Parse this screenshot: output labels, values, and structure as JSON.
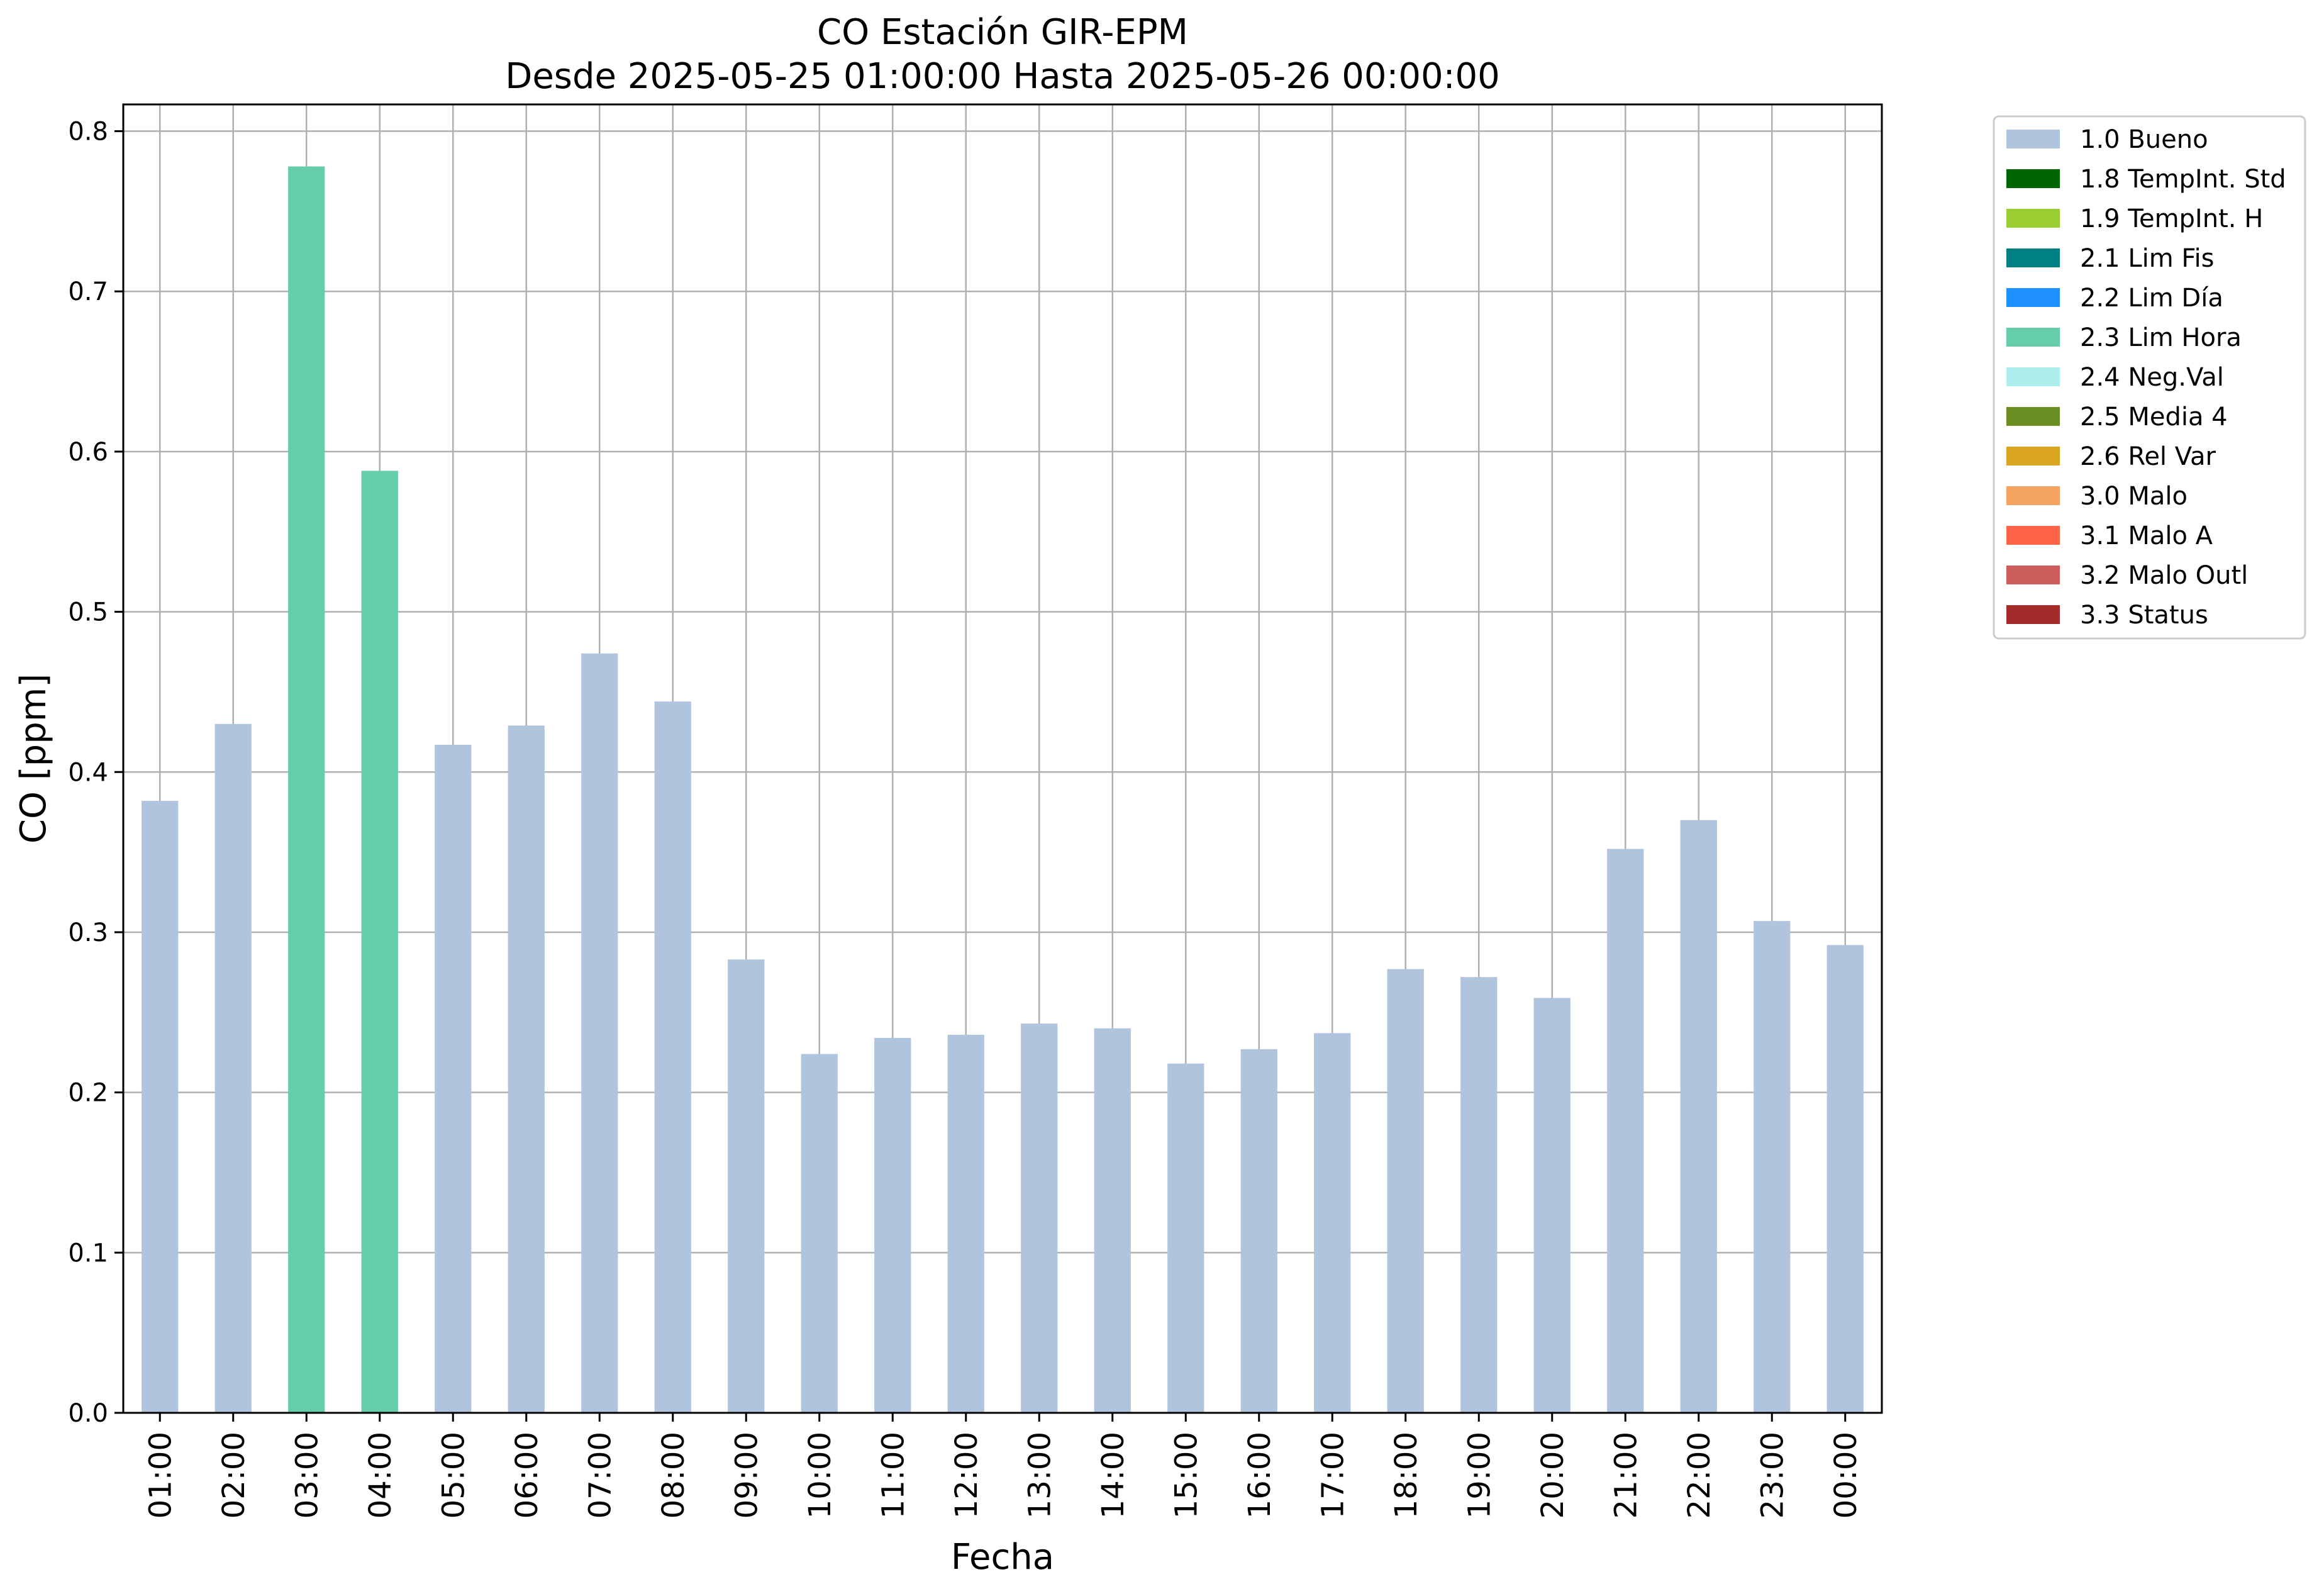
{
  "chart_data": {
    "type": "bar",
    "title": "CO Estación GIR-EPM",
    "subtitle": "Desde 2025-05-25 01:00:00 Hasta 2025-05-26 00:00:00",
    "xlabel": "Fecha",
    "ylabel": "CO [ppm]",
    "ylim": [
      0,
      0.8167
    ],
    "yticks": [
      0.0,
      0.1,
      0.2,
      0.3,
      0.4,
      0.5,
      0.6,
      0.7,
      0.8
    ],
    "ytick_labels": [
      "0.0",
      "0.1",
      "0.2",
      "0.3",
      "0.4",
      "0.5",
      "0.6",
      "0.7",
      "0.8"
    ],
    "grid": true,
    "legend_position": "outside-right-top",
    "categories": [
      "01:00",
      "02:00",
      "03:00",
      "04:00",
      "05:00",
      "06:00",
      "07:00",
      "08:00",
      "09:00",
      "10:00",
      "11:00",
      "12:00",
      "13:00",
      "14:00",
      "15:00",
      "16:00",
      "17:00",
      "18:00",
      "19:00",
      "20:00",
      "21:00",
      "22:00",
      "23:00",
      "00:00"
    ],
    "values": [
      0.382,
      0.43,
      0.778,
      0.588,
      0.417,
      0.429,
      0.474,
      0.444,
      0.283,
      0.224,
      0.234,
      0.236,
      0.243,
      0.24,
      0.218,
      0.227,
      0.237,
      0.277,
      0.272,
      0.259,
      0.352,
      0.37,
      0.307,
      0.292
    ],
    "flags": [
      "1.0 Bueno",
      "1.0 Bueno",
      "2.3 Lim Hora",
      "2.3 Lim Hora",
      "1.0 Bueno",
      "1.0 Bueno",
      "1.0 Bueno",
      "1.0 Bueno",
      "1.0 Bueno",
      "1.0 Bueno",
      "1.0 Bueno",
      "1.0 Bueno",
      "1.0 Bueno",
      "1.0 Bueno",
      "1.0 Bueno",
      "1.0 Bueno",
      "1.0 Bueno",
      "1.0 Bueno",
      "1.0 Bueno",
      "1.0 Bueno",
      "1.0 Bueno",
      "1.0 Bueno",
      "1.0 Bueno",
      "1.0 Bueno"
    ],
    "legend": [
      {
        "label": "1.0 Bueno",
        "color": "#b0c4de"
      },
      {
        "label": "1.8 TempInt. Std",
        "color": "#006400"
      },
      {
        "label": "1.9 TempInt. H",
        "color": "#9acd32"
      },
      {
        "label": "2.1 Lim Fis",
        "color": "#008080"
      },
      {
        "label": "2.2 Lim Día",
        "color": "#1e90ff"
      },
      {
        "label": "2.3 Lim Hora",
        "color": "#66cdaa"
      },
      {
        "label": "2.4 Neg.Val",
        "color": "#afeeee"
      },
      {
        "label": "2.5 Media 4",
        "color": "#6b8e23"
      },
      {
        "label": "2.6 Rel Var",
        "color": "#daa520"
      },
      {
        "label": "3.0 Malo",
        "color": "#f4a460"
      },
      {
        "label": "3.1 Malo A",
        "color": "#ff6347"
      },
      {
        "label": "3.2 Malo Outl",
        "color": "#cd5c5c"
      },
      {
        "label": "3.3 Status",
        "color": "#a52a2a"
      }
    ]
  }
}
